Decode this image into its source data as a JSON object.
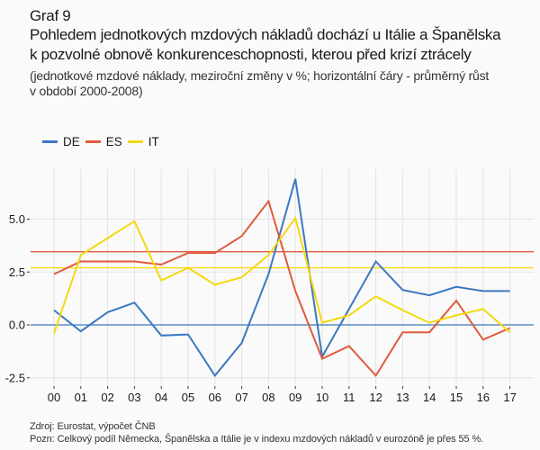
{
  "header": {
    "graf_number": "Graf 9",
    "title_line1": "Pohledem jednotkových mzdových nákladů dochází u Itálie a Španělska",
    "title_line2": "k pozvolné obnově konkurenceschopnosti, kterou před krizí ztrácely",
    "subtitle_line1": "(jednotkové mzdové náklady, meziroční změny v %; horizontální čáry - průměrný růst",
    "subtitle_line2": "v období 2000-2008)"
  },
  "footer": {
    "source": "Zdroj: Eurostat, výpočet ČNB",
    "note": "Pozn: Celkový podíl Německa, Španělska a Itálie je v indexu mzdových nákladů v eurozóně je přes 55 %."
  },
  "chart_data": {
    "type": "line",
    "title": "Pohledem jednotkových mzdových nákladů dochází u Itálie a Španělska k pozvolné obnově konkurenceschopnosti, kterou před krizí ztrácely",
    "subtitle": "(jednotkové mzdové náklady, meziroční změny v %; horizontální čáry - průměrný růst v období 2000-2008)",
    "xlabel": "",
    "ylabel": "",
    "x": [
      "00",
      "01",
      "02",
      "03",
      "04",
      "05",
      "06",
      "07",
      "08",
      "09",
      "10",
      "11",
      "12",
      "13",
      "14",
      "15",
      "16",
      "17"
    ],
    "yticks": [
      -2.5,
      0.0,
      2.5,
      5.0
    ],
    "ytick_labels": [
      "-2.5",
      "0.0",
      "2.5",
      "5.0"
    ],
    "ylim": [
      -2.8,
      7.3
    ],
    "grid": true,
    "legend_position": "top-left",
    "series": [
      {
        "name": "DE",
        "color": "#3c78c0",
        "values": [
          0.7,
          -0.3,
          0.6,
          1.05,
          -0.5,
          -0.45,
          -2.4,
          -0.85,
          2.4,
          6.9,
          -1.5,
          0.75,
          3.0,
          1.65,
          1.4,
          1.8,
          1.6,
          1.6
        ],
        "average_2000_2008": 0.0
      },
      {
        "name": "ES",
        "color": "#e05a3c",
        "values": [
          2.4,
          3.0,
          3.0,
          3.0,
          2.85,
          3.4,
          3.4,
          4.2,
          5.85,
          1.6,
          -1.6,
          -1.0,
          -2.4,
          -0.35,
          -0.35,
          1.15,
          -0.7,
          -0.15
        ],
        "average_2000_2008": 3.46
      },
      {
        "name": "IT",
        "color": "#f5d80f",
        "values": [
          -0.4,
          3.3,
          4.1,
          4.9,
          2.1,
          2.7,
          1.9,
          2.25,
          3.3,
          5.05,
          0.1,
          0.45,
          1.35,
          0.7,
          0.1,
          0.45,
          0.75,
          -0.35
        ],
        "average_2000_2008": 2.7
      }
    ]
  }
}
